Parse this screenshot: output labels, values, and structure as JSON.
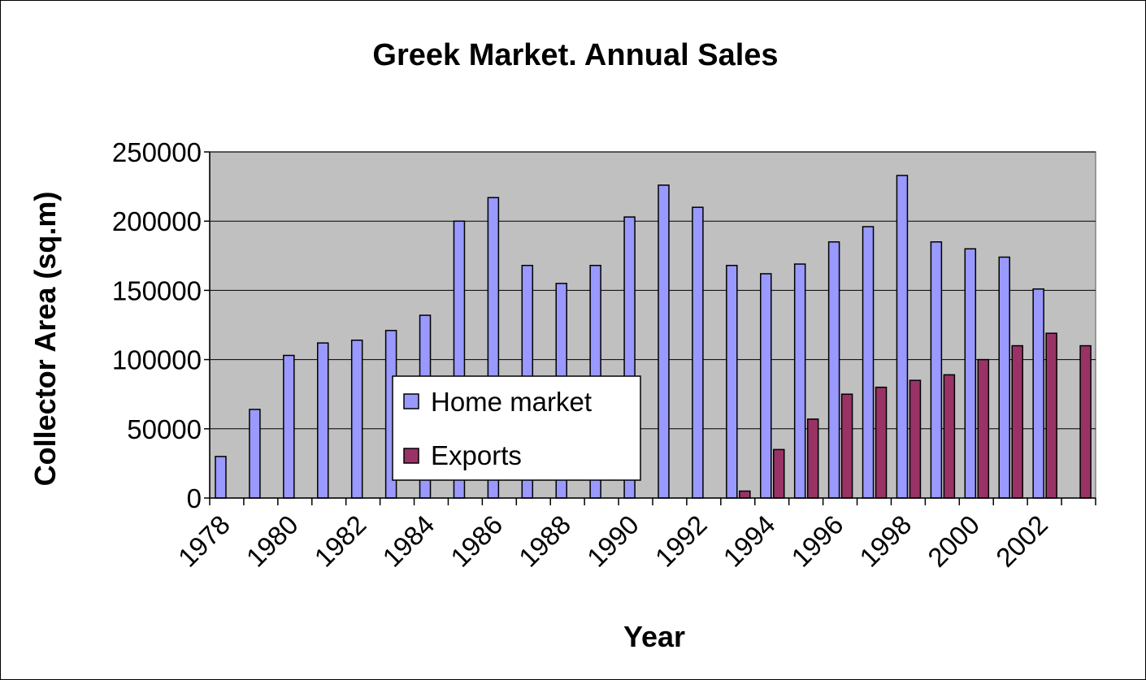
{
  "colors": {
    "plot_background": "#c0c0c0",
    "home_market": "#9999ff",
    "exports": "#993366",
    "gridline": "#000000"
  },
  "chart_data": {
    "type": "bar",
    "title": "Greek Market. Annual Sales",
    "xlabel": "Year",
    "ylabel": "Collector Area (sq.m)",
    "ylim": [
      0,
      250000
    ],
    "yticks": [
      "0",
      "50000",
      "100000",
      "150000",
      "200000",
      "250000"
    ],
    "categories": [
      "1978",
      "1979",
      "1980",
      "1981",
      "1982",
      "1983",
      "1984",
      "1985",
      "1986",
      "1987",
      "1988",
      "1989",
      "1990",
      "1991",
      "1992",
      "1993",
      "1994",
      "1995",
      "1996",
      "1997",
      "1998",
      "1999",
      "2000",
      "2001",
      "2002",
      "2003"
    ],
    "xticklabels": [
      "1978",
      "1980",
      "1982",
      "1984",
      "1986",
      "1988",
      "1990",
      "1992",
      "1994",
      "1996",
      "1998",
      "2000",
      "2002"
    ],
    "grid": true,
    "legend_position": "center-left",
    "series": [
      {
        "name": "Home market",
        "values": [
          30000,
          64000,
          103000,
          112000,
          114000,
          121000,
          132000,
          200000,
          217000,
          168000,
          155000,
          168000,
          203000,
          226000,
          210000,
          168000,
          162000,
          169000,
          185000,
          196000,
          233000,
          185000,
          180000,
          174000,
          151000,
          null
        ]
      },
      {
        "name": "Exports",
        "values": [
          null,
          null,
          null,
          null,
          null,
          null,
          null,
          null,
          null,
          null,
          null,
          null,
          null,
          null,
          null,
          5000,
          35000,
          57000,
          75000,
          80000,
          85000,
          89000,
          100000,
          110000,
          119000,
          110000
        ]
      }
    ]
  }
}
